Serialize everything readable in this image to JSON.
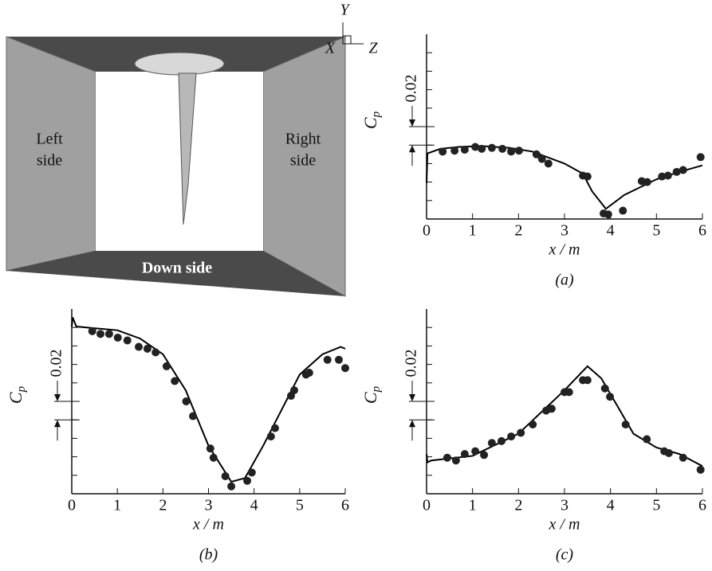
{
  "diagram": {
    "labels": {
      "left": [
        "Left",
        "side"
      ],
      "right": [
        "Right",
        "side"
      ],
      "down": "Down side"
    },
    "axes": {
      "y": "Y",
      "x": "X",
      "z": "Z"
    }
  },
  "chart_data": [
    {
      "type": "line",
      "caption": "(a)",
      "xlabel": "x / m",
      "ylabel": "C",
      "ylabel_sub": "p",
      "xlim": [
        0,
        6
      ],
      "xticks": [
        0,
        1,
        2,
        3,
        4,
        5,
        6
      ],
      "ylim": [
        0,
        0.2
      ],
      "yticks": [
        0.02,
        0.04,
        0.06,
        0.08,
        0.1,
        0.12,
        0.14,
        0.16,
        0.18
      ],
      "scale_bar": {
        "label": "0.02",
        "from": 0.08,
        "to": 0.1
      },
      "series": [
        {
          "style": "line",
          "color": "#000000",
          "x": [
            0,
            0.02,
            0.3,
            0.7,
            1.2,
            1.8,
            2.3,
            3.0,
            3.4,
            3.6,
            3.9,
            4.3,
            5.0,
            5.5,
            6.0
          ],
          "values": [
            0.039,
            0.071,
            0.076,
            0.078,
            0.079,
            0.077,
            0.073,
            0.06,
            0.049,
            0.03,
            0.011,
            0.026,
            0.043,
            0.051,
            0.058
          ]
        },
        {
          "style": "markers",
          "color": "#222222",
          "x": [
            0.35,
            0.61,
            0.83,
            1.06,
            1.2,
            1.42,
            1.65,
            1.84,
            2.01,
            2.39,
            2.51,
            2.65,
            3.4,
            3.5,
            3.85,
            3.95,
            4.27,
            4.68,
            4.8,
            5.12,
            5.25,
            5.44,
            5.58,
            5.96
          ],
          "values": [
            0.073,
            0.074,
            0.075,
            0.078,
            0.076,
            0.077,
            0.076,
            0.073,
            0.074,
            0.07,
            0.065,
            0.06,
            0.047,
            0.046,
            0.006,
            0.005,
            0.009,
            0.041,
            0.04,
            0.046,
            0.047,
            0.051,
            0.053,
            0.067
          ]
        }
      ]
    },
    {
      "type": "line",
      "caption": "(b)",
      "xlabel": "x / m",
      "ylabel": "C",
      "ylabel_sub": "p",
      "xlim": [
        0,
        6
      ],
      "xticks": [
        0,
        1,
        2,
        3,
        4,
        5,
        6
      ],
      "ylim": [
        0,
        0.2
      ],
      "yticks": [
        0.02,
        0.04,
        0.06,
        0.08,
        0.1,
        0.12,
        0.14,
        0.16,
        0.18
      ],
      "scale_bar": {
        "label": "0.02",
        "from": 0.08,
        "to": 0.1
      },
      "series": [
        {
          "style": "line",
          "color": "#000000",
          "x": [
            0,
            0.02,
            0.1,
            1,
            1.5,
            2,
            2.5,
            3,
            3.5,
            3.8,
            4.2,
            5,
            5.5,
            5.9,
            6.0
          ],
          "values": [
            0.181,
            0.191,
            0.181,
            0.177,
            0.168,
            0.151,
            0.112,
            0.052,
            0.013,
            0.017,
            0.052,
            0.129,
            0.151,
            0.159,
            0.157
          ]
        },
        {
          "style": "markers",
          "color": "#222222",
          "x": [
            0.45,
            0.63,
            0.82,
            1.01,
            1.22,
            1.47,
            1.66,
            1.84,
            2.08,
            2.26,
            2.51,
            2.66,
            3.04,
            3.11,
            3.37,
            3.5,
            3.85,
            3.95,
            4.37,
            4.46,
            4.81,
            4.88,
            5.14,
            5.21,
            5.61,
            5.86,
            6.0
          ],
          "values": [
            0.176,
            0.173,
            0.173,
            0.169,
            0.166,
            0.159,
            0.157,
            0.153,
            0.138,
            0.122,
            0.1,
            0.084,
            0.049,
            0.039,
            0.019,
            0.008,
            0.014,
            0.023,
            0.062,
            0.071,
            0.106,
            0.112,
            0.129,
            0.131,
            0.145,
            0.145,
            0.136
          ]
        }
      ]
    },
    {
      "type": "line",
      "caption": "(c)",
      "xlabel": "x / m",
      "ylabel": "C",
      "ylabel_sub": "p",
      "xlim": [
        0,
        6
      ],
      "xticks": [
        0,
        1,
        2,
        3,
        4,
        5,
        6
      ],
      "ylim": [
        0,
        0.2
      ],
      "yticks": [
        0.02,
        0.04,
        0.06,
        0.08,
        0.1,
        0.12,
        0.14,
        0.16,
        0.18
      ],
      "scale_bar": {
        "label": "0.02",
        "from": 0.08,
        "to": 0.1
      },
      "series": [
        {
          "style": "line",
          "color": "#000000",
          "x": [
            0,
            0.02,
            0.1,
            1,
            2,
            3,
            3.5,
            3.8,
            4.5,
            5,
            5.5,
            6
          ],
          "values": [
            0.043,
            0.034,
            0.036,
            0.041,
            0.065,
            0.112,
            0.138,
            0.125,
            0.065,
            0.05,
            0.043,
            0.03
          ]
        },
        {
          "style": "markers",
          "color": "#222222",
          "x": [
            0.45,
            0.64,
            0.83,
            1.06,
            1.25,
            1.42,
            1.63,
            1.84,
            2.05,
            2.31,
            2.6,
            2.72,
            3.0,
            3.1,
            3.4,
            3.5,
            3.88,
            3.99,
            4.33,
            4.79,
            5.17,
            5.27,
            5.58,
            5.96
          ],
          "values": [
            0.039,
            0.036,
            0.043,
            0.046,
            0.042,
            0.055,
            0.057,
            0.062,
            0.066,
            0.075,
            0.09,
            0.092,
            0.11,
            0.11,
            0.123,
            0.123,
            0.114,
            0.105,
            0.075,
            0.059,
            0.046,
            0.044,
            0.039,
            0.026
          ]
        }
      ]
    }
  ]
}
